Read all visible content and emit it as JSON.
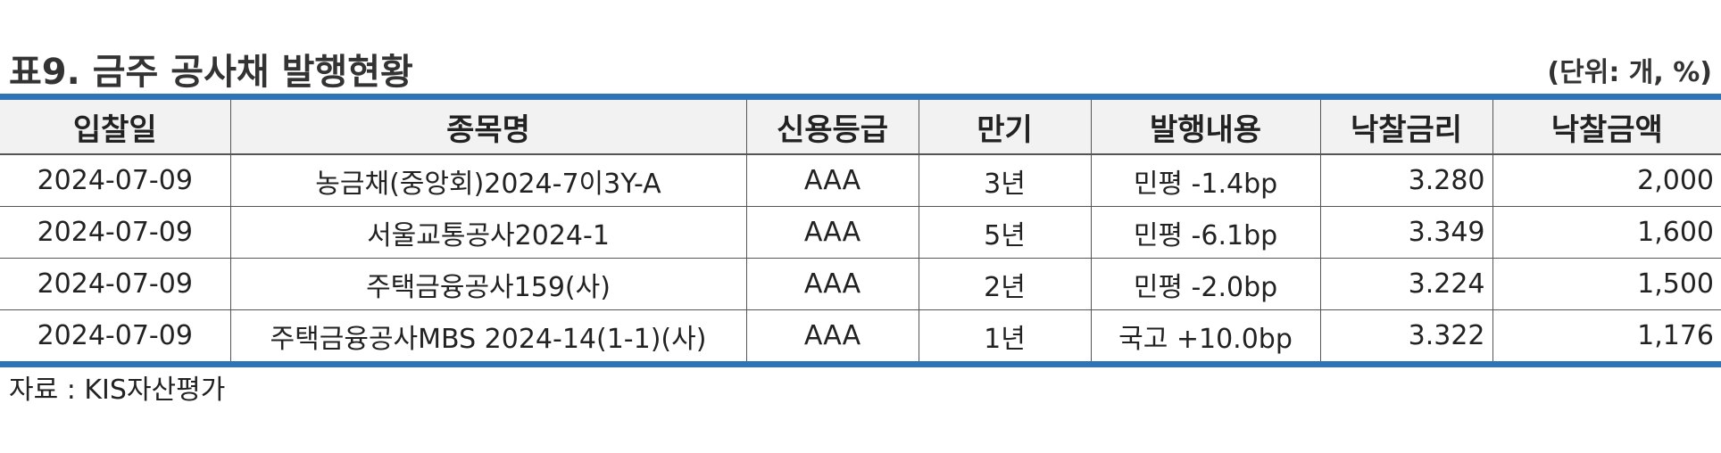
{
  "title": "표9. 금주 공사채 발행현황",
  "unit": "(단위: 개, %)",
  "table": {
    "headers": [
      "입찰일",
      "종목명",
      "신용등급",
      "만기",
      "발행내용",
      "낙찰금리",
      "낙찰금액"
    ],
    "rows": [
      [
        "2024-07-09",
        "농금채(중앙회)2024-7이3Y-A",
        "AAA",
        "3년",
        "민평 -1.4bp",
        "3.280",
        "2,000"
      ],
      [
        "2024-07-09",
        "서울교통공사2024-1",
        "AAA",
        "5년",
        "민평 -6.1bp",
        "3.349",
        "1,600"
      ],
      [
        "2024-07-09",
        "주택금융공사159(사)",
        "AAA",
        "2년",
        "민평 -2.0bp",
        "3.224",
        "1,500"
      ],
      [
        "2024-07-09",
        "주택금융공사MBS 2024-14(1-1)(사)",
        "AAA",
        "1년",
        "국고 +10.0bp",
        "3.322",
        "1,176"
      ]
    ]
  },
  "source": "자료 : KIS자산평가",
  "colors": {
    "accent_border": "#2f75b5",
    "header_bg": "#f2f2f2"
  }
}
